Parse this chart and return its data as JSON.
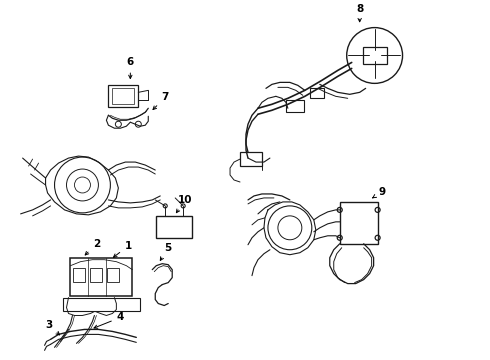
{
  "bg_color": "#ffffff",
  "line_color": "#1a1a1a",
  "lw": 0.7,
  "label_fontsize": 7.5,
  "label_fontweight": "bold"
}
